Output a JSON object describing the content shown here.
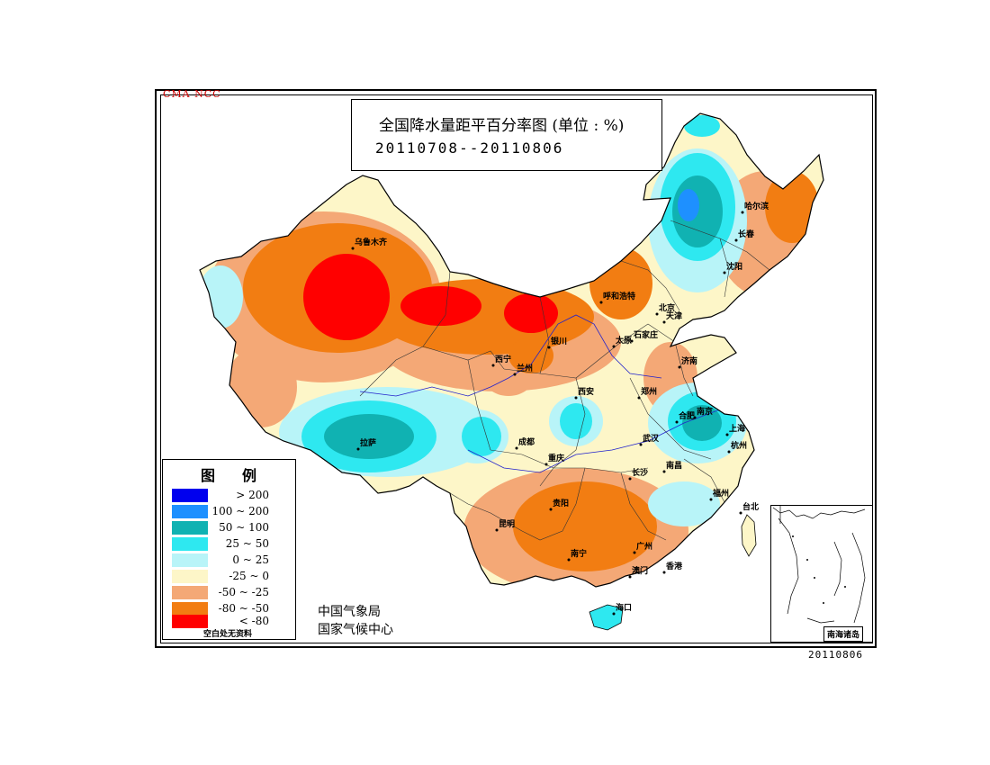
{
  "watermark": "CMA  NCC",
  "title": "全国降水量距平百分率图 (单位 : %)",
  "date_range": "20110708--20110806",
  "legend": {
    "title": "图例",
    "items": [
      {
        "label": "> 200",
        "color": "#0000ee"
      },
      {
        "label": "100 ~ 200",
        "color": "#1e90ff"
      },
      {
        "label": "50 ~ 100",
        "color": "#10b2b2"
      },
      {
        "label": "25 ~ 50",
        "color": "#2ee8f0"
      },
      {
        "label": "0 ~ 25",
        "color": "#b8f4f8"
      },
      {
        "label": "-25 ~ 0",
        "color": "#fdf6c8"
      },
      {
        "label": "-50 ~ -25",
        "color": "#f4a876"
      },
      {
        "label": "-80 ~ -50",
        "color": "#f27d12"
      },
      {
        "label": "< -80",
        "color": "#ff0000"
      }
    ],
    "note": "空白处无资料"
  },
  "agency": {
    "line1": "中国气象局",
    "line2": "国家气候中心"
  },
  "inset_label": "南海诸岛",
  "footer_date": "20110806",
  "cities": [
    "乌鲁木齐",
    "哈尔滨",
    "长春",
    "沈阳",
    "呼和浩特",
    "北京",
    "天津",
    "石家庄",
    "太原",
    "银川",
    "西宁",
    "兰州",
    "济南",
    "郑州",
    "西安",
    "合肥",
    "南京",
    "上海",
    "杭州",
    "拉萨",
    "成都",
    "重庆",
    "武汉",
    "长沙",
    "南昌",
    "福州",
    "台北",
    "贵阳",
    "昆明",
    "南宁",
    "广州",
    "香港",
    "澳门",
    "海口"
  ]
}
